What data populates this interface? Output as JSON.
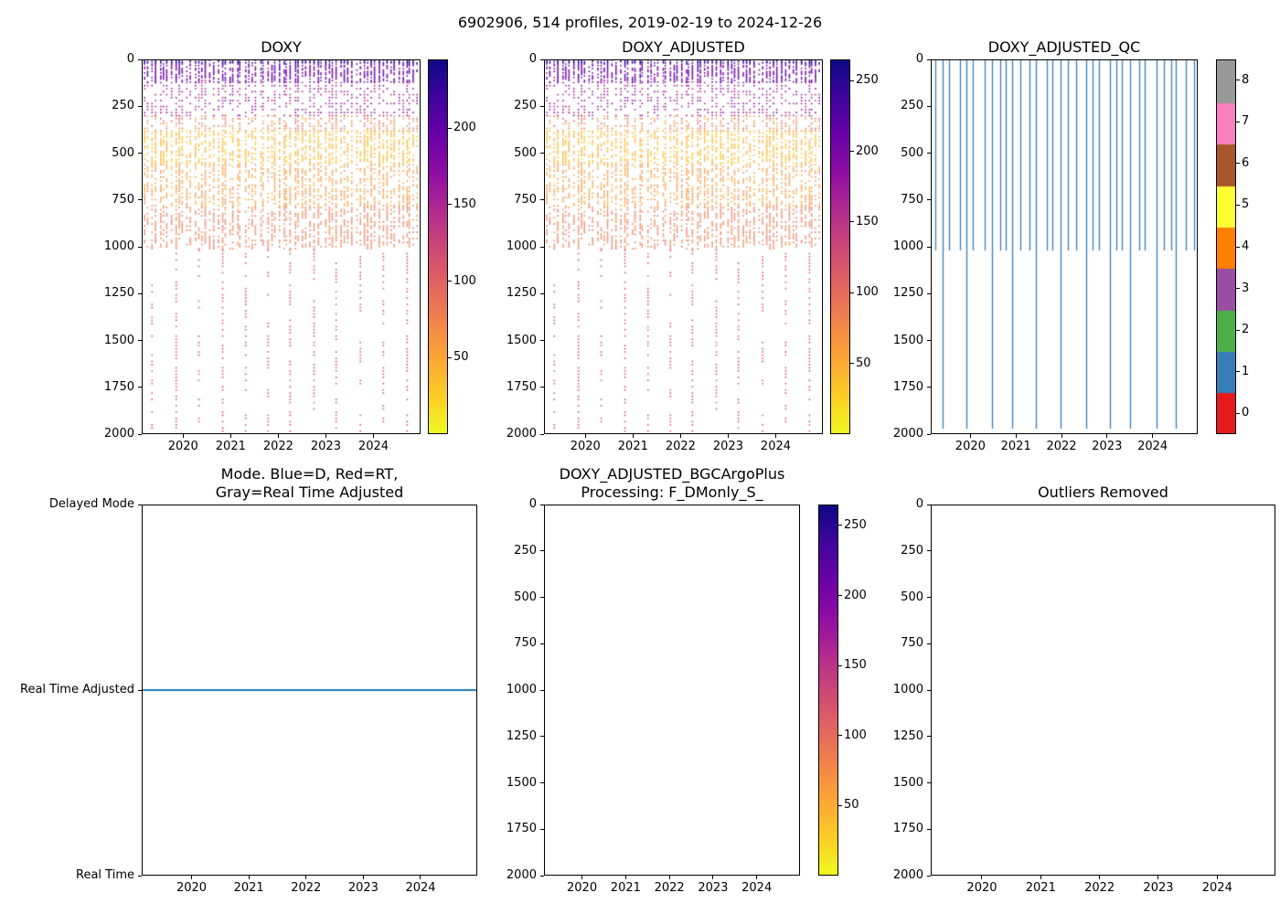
{
  "figure": {
    "suptitle": "6902906, 514 profiles, 2019-02-19 to 2024-12-26",
    "platform": "6902906",
    "n_profiles": 514,
    "date_start": "2019-02-19",
    "date_end": "2024-12-26",
    "background": "#ffffff"
  },
  "chart_data": [
    {
      "id": "doxy",
      "type": "scatter",
      "title": "DOXY",
      "x_range": [
        2019.13,
        2024.99
      ],
      "x_ticks": [
        2020,
        2021,
        2022,
        2023,
        2024
      ],
      "y_range": [
        0,
        2000
      ],
      "y_inverted": true,
      "y_ticks": [
        0,
        250,
        500,
        750,
        1000,
        1250,
        1500,
        1750,
        2000
      ],
      "colormap": "plasma_r",
      "colorbar": {
        "vmin": 0,
        "vmax": 245,
        "ticks": [
          50,
          100,
          150,
          200
        ]
      },
      "profiles": {
        "n_columns": 72,
        "deep_every": 6,
        "shallow_max_depth": 1020,
        "deep_max_depth": 1990,
        "seed": 7,
        "value_scale": 1.0,
        "depth_bands": [
          {
            "depths": [
              0,
              20
            ],
            "value": 228,
            "spread": 14,
            "step": 7,
            "keep": 0.8
          },
          {
            "depths": [
              20,
              120
            ],
            "value": 196,
            "spread": 26,
            "step": 8,
            "keep": 0.65
          },
          {
            "depths": [
              120,
              300
            ],
            "value": 160,
            "spread": 24,
            "step": 16,
            "keep": 0.45
          },
          {
            "depths": [
              300,
              380
            ],
            "value": 75,
            "spread": 35,
            "step": 13,
            "keep": 0.5
          },
          {
            "depths": [
              380,
              560
            ],
            "value": 38,
            "spread": 16,
            "step": 10,
            "keep": 0.6
          },
          {
            "depths": [
              560,
              790
            ],
            "value": 60,
            "spread": 16,
            "step": 11,
            "keep": 0.55
          },
          {
            "depths": [
              790,
              1020
            ],
            "value": 82,
            "spread": 14,
            "step": 11,
            "keep": 0.55
          },
          {
            "depths": [
              1020,
              1990
            ],
            "value": 112,
            "spread": 16,
            "step": 17,
            "keep": 0.5
          }
        ]
      }
    },
    {
      "id": "doxy_adjusted",
      "type": "scatter",
      "title": "DOXY_ADJUSTED",
      "x_range": [
        2019.13,
        2024.99
      ],
      "x_ticks": [
        2020,
        2021,
        2022,
        2023,
        2024
      ],
      "y_range": [
        0,
        2000
      ],
      "y_inverted": true,
      "y_ticks": [
        0,
        250,
        500,
        750,
        1000,
        1250,
        1500,
        1750,
        2000
      ],
      "colormap": "plasma_r",
      "colorbar": {
        "vmin": 0,
        "vmax": 265,
        "ticks": [
          50,
          100,
          150,
          200,
          250
        ]
      },
      "profiles": {
        "n_columns": 72,
        "deep_every": 6,
        "shallow_max_depth": 1020,
        "deep_max_depth": 1990,
        "seed": 7,
        "value_scale": 1.08,
        "depth_bands": [
          {
            "depths": [
              0,
              20
            ],
            "value": 228,
            "spread": 14,
            "step": 7,
            "keep": 0.8
          },
          {
            "depths": [
              20,
              120
            ],
            "value": 196,
            "spread": 26,
            "step": 8,
            "keep": 0.65
          },
          {
            "depths": [
              120,
              300
            ],
            "value": 160,
            "spread": 24,
            "step": 16,
            "keep": 0.45
          },
          {
            "depths": [
              300,
              380
            ],
            "value": 75,
            "spread": 35,
            "step": 13,
            "keep": 0.5
          },
          {
            "depths": [
              380,
              560
            ],
            "value": 38,
            "spread": 16,
            "step": 10,
            "keep": 0.6
          },
          {
            "depths": [
              560,
              790
            ],
            "value": 60,
            "spread": 16,
            "step": 11,
            "keep": 0.55
          },
          {
            "depths": [
              790,
              1020
            ],
            "value": 82,
            "spread": 14,
            "step": 11,
            "keep": 0.55
          },
          {
            "depths": [
              1020,
              1990
            ],
            "value": 112,
            "spread": 16,
            "step": 17,
            "keep": 0.5
          }
        ]
      }
    },
    {
      "id": "doxy_adjusted_qc",
      "type": "qc_lines",
      "title": "DOXY_ADJUSTED_QC",
      "x_range": [
        2019.13,
        2024.99
      ],
      "x_ticks": [
        2020,
        2021,
        2022,
        2023,
        2024
      ],
      "y_range": [
        0,
        2000
      ],
      "y_inverted": true,
      "y_ticks": [
        0,
        250,
        500,
        750,
        1000,
        1250,
        1500,
        1750,
        2000
      ],
      "colorbar": {
        "type": "discrete",
        "values": [
          0,
          1,
          2,
          3,
          4,
          5,
          6,
          7,
          8
        ],
        "colors": [
          "#e41a1c",
          "#377eb8",
          "#4daf4a",
          "#984ea3",
          "#ff7f00",
          "#ffff33",
          "#a65628",
          "#f781bf",
          "#999999"
        ]
      },
      "lines": {
        "n": 34,
        "deep_every": 3,
        "qc_value": 1,
        "shallow_max_depth": 1020,
        "deep_max_depth": 1975,
        "seed": 11
      }
    },
    {
      "id": "mode",
      "type": "categorical_line",
      "title": "Mode. Blue=D, Red=RT,\nGray=Real Time Adjusted",
      "x_range": [
        2019.13,
        2024.99
      ],
      "x_ticks": [
        2020,
        2021,
        2022,
        2023,
        2024
      ],
      "y_categories": [
        "Delayed Mode",
        "Real Time Adjusted",
        "Real Time"
      ],
      "series": [
        {
          "name": "mode",
          "category": "Real Time Adjusted",
          "color": "#1f77b4",
          "x_start": 2019.13,
          "x_end": 2024.99
        }
      ]
    },
    {
      "id": "doxy_adjusted_bgcargoplus",
      "type": "scatter",
      "title": "DOXY_ADJUSTED_BGCArgoPlus\nProcessing: F_DMonly_S_",
      "x_range": [
        2019.13,
        2024.99
      ],
      "x_ticks": [
        2020,
        2021,
        2022,
        2023,
        2024
      ],
      "y_range": [
        0,
        2000
      ],
      "y_inverted": true,
      "y_ticks": [
        0,
        250,
        500,
        750,
        1000,
        1250,
        1500,
        1750,
        2000
      ],
      "colormap": "plasma_r",
      "colorbar": {
        "vmin": 0,
        "vmax": 265,
        "ticks": [
          50,
          100,
          150,
          200,
          250
        ]
      },
      "empty": true
    },
    {
      "id": "outliers_removed",
      "type": "scatter",
      "title": "Outliers Removed",
      "x_range": [
        2019.13,
        2024.99
      ],
      "x_ticks": [
        2020,
        2021,
        2022,
        2023,
        2024
      ],
      "y_range": [
        0,
        2000
      ],
      "y_inverted": true,
      "y_ticks": [
        0,
        250,
        500,
        750,
        1000,
        1250,
        1500,
        1750,
        2000
      ],
      "empty": true
    }
  ]
}
